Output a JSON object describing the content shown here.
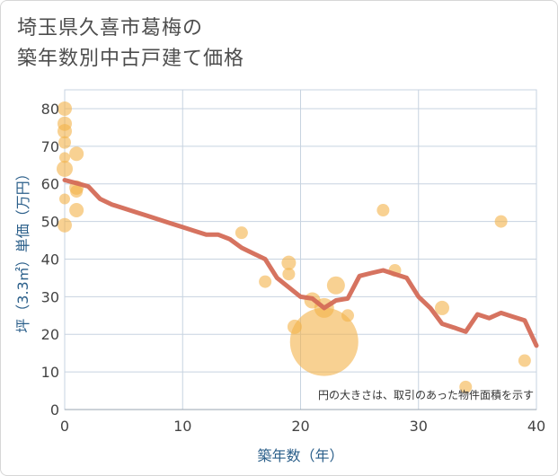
{
  "chart_data": {
    "type": "scatter",
    "title": [
      "埼玉県久喜市葛梅の",
      "築年数別中古戸建て価格"
    ],
    "xlabel": "築年数（年）",
    "ylabel": "坪（3.3㎡）単価（万円）",
    "xlim": [
      0,
      40
    ],
    "ylim": [
      0,
      85
    ],
    "xticks": [
      0,
      10,
      20,
      30,
      40
    ],
    "yticks": [
      0,
      10,
      20,
      30,
      40,
      50,
      60,
      70,
      80
    ],
    "grid": true,
    "note": "円の大きさは、取引のあった物件面積を示す",
    "colors": {
      "bubble": "#f3b34a",
      "line": "#d46b57",
      "grid": "#c7d3e0",
      "axis_text": "#2b5f8a"
    },
    "bubbles": [
      {
        "x": 0,
        "y": 80,
        "size": 8
      },
      {
        "x": 0,
        "y": 76,
        "size": 8
      },
      {
        "x": 0,
        "y": 74,
        "size": 8
      },
      {
        "x": 0,
        "y": 71,
        "size": 7
      },
      {
        "x": 0,
        "y": 67,
        "size": 6
      },
      {
        "x": 0,
        "y": 64,
        "size": 9
      },
      {
        "x": 0,
        "y": 56,
        "size": 6
      },
      {
        "x": 0,
        "y": 49,
        "size": 8
      },
      {
        "x": 1,
        "y": 68,
        "size": 8
      },
      {
        "x": 1,
        "y": 58,
        "size": 7
      },
      {
        "x": 1,
        "y": 59,
        "size": 8
      },
      {
        "x": 1,
        "y": 53,
        "size": 8
      },
      {
        "x": 15,
        "y": 47,
        "size": 7
      },
      {
        "x": 17,
        "y": 34,
        "size": 7
      },
      {
        "x": 19,
        "y": 39,
        "size": 8
      },
      {
        "x": 19,
        "y": 36,
        "size": 7
      },
      {
        "x": 19.5,
        "y": 22,
        "size": 8
      },
      {
        "x": 21,
        "y": 29,
        "size": 9
      },
      {
        "x": 22,
        "y": 27,
        "size": 11
      },
      {
        "x": 22,
        "y": 18,
        "size": 38
      },
      {
        "x": 23,
        "y": 33,
        "size": 10
      },
      {
        "x": 24,
        "y": 25,
        "size": 7
      },
      {
        "x": 27,
        "y": 53,
        "size": 7
      },
      {
        "x": 28,
        "y": 37,
        "size": 7
      },
      {
        "x": 32,
        "y": 27,
        "size": 8
      },
      {
        "x": 34,
        "y": 6,
        "size": 7
      },
      {
        "x": 37,
        "y": 50,
        "size": 7
      },
      {
        "x": 39,
        "y": 13,
        "size": 7
      }
    ],
    "trend_line": {
      "x": [
        0,
        1,
        2,
        3,
        4,
        5,
        6,
        7,
        8,
        9,
        10,
        11,
        12,
        13,
        14,
        15,
        16,
        17,
        18,
        19,
        20,
        21,
        22,
        23,
        24,
        25,
        26,
        27,
        28,
        29,
        30,
        31,
        32,
        33,
        34,
        35,
        36,
        37,
        38,
        39,
        40
      ],
      "y": [
        61,
        60.2,
        59.3,
        56,
        54.5,
        53.5,
        52.5,
        51.5,
        50.5,
        49.5,
        48.5,
        47.5,
        46.5,
        46.5,
        45.3,
        43,
        41.5,
        40,
        35,
        32.5,
        30,
        29.5,
        27,
        29,
        29.5,
        35.5,
        36.3,
        37,
        36,
        35,
        30,
        27,
        22.8,
        21.8,
        20.7,
        25.3,
        24.3,
        25.7,
        24.7,
        23.7,
        17
      ]
    }
  }
}
